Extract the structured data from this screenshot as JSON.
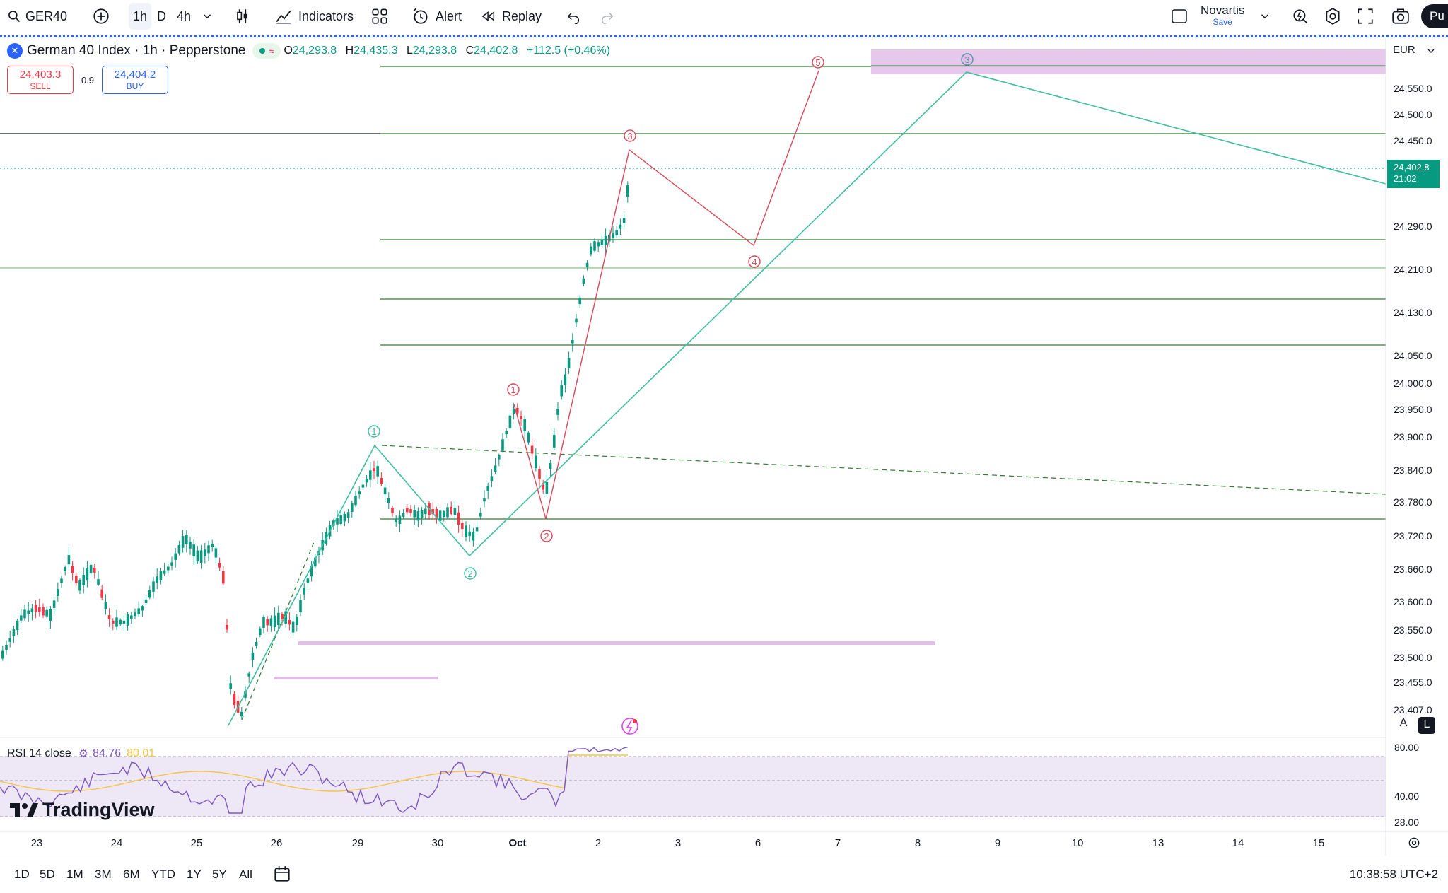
{
  "toolbar": {
    "symbol": "GER40",
    "intervals": [
      "1h",
      "D",
      "4h"
    ],
    "active_interval": "1h",
    "indicators_label": "Indicators",
    "alert_label": "Alert",
    "replay_label": "Replay",
    "layout_name": "Novartis",
    "layout_status": "Save",
    "publish_label": "Pu"
  },
  "legend": {
    "title": "German 40 Index · 1h · Pepperstone",
    "open_label": "O",
    "open": "24,293.8",
    "high_label": "H",
    "high": "24,435.3",
    "low_label": "L",
    "low": "24,293.8",
    "close_label": "C",
    "close": "24,402.8",
    "change": "+112.5 (+0.46%)"
  },
  "trade": {
    "sell_price": "24,403.3",
    "sell_label": "SELL",
    "spread": "0.9",
    "buy_price": "24,404.2",
    "buy_label": "BUY"
  },
  "price_axis": {
    "currency": "EUR",
    "labels": [
      "24,550.0",
      "24,500.0",
      "24,450.0",
      "24,290.0",
      "24,210.0",
      "24,130.0",
      "24,050.0",
      "24,000.0",
      "23,950.0",
      "23,900.0",
      "23,840.0",
      "23,780.0",
      "23,720.0",
      "23,660.0",
      "23,600.0",
      "23,550.0",
      "23,500.0",
      "23,455.0",
      "23,407.0"
    ],
    "current_price": "24,402.8",
    "countdown": "21:02",
    "scale_a": "A",
    "scale_l": "L"
  },
  "rsi": {
    "label": "RSI 14 close",
    "value": "84.76",
    "ma_value": "80.01",
    "axis": [
      "80.00",
      "40.00",
      "28.00"
    ]
  },
  "branding": {
    "logo_text": "TradingView"
  },
  "time_axis": [
    "23",
    "24",
    "25",
    "26",
    "29",
    "30",
    "Oct",
    "2",
    "3",
    "6",
    "7",
    "8",
    "9",
    "10",
    "13",
    "14",
    "15"
  ],
  "ranges": [
    "1D",
    "5D",
    "1M",
    "3M",
    "6M",
    "YTD",
    "1Y",
    "5Y",
    "All"
  ],
  "clock": "10:38:58 UTC+2",
  "wave_labels": {
    "green_1": "1",
    "green_2": "2",
    "green_3": "3",
    "red_1": "1",
    "red_2": "2",
    "red_3": "3",
    "red_4": "4",
    "red_5": "5"
  },
  "colors": {
    "up": "#089981",
    "down": "#f23645",
    "accent": "#2962ff",
    "wave_green": "#3fbfa0",
    "wave_red": "#d9485a",
    "level_line": "#2e7d32",
    "zone": "#e1bee7",
    "rsi_line": "#7e57c2",
    "rsi_ma": "#f5c542"
  }
}
